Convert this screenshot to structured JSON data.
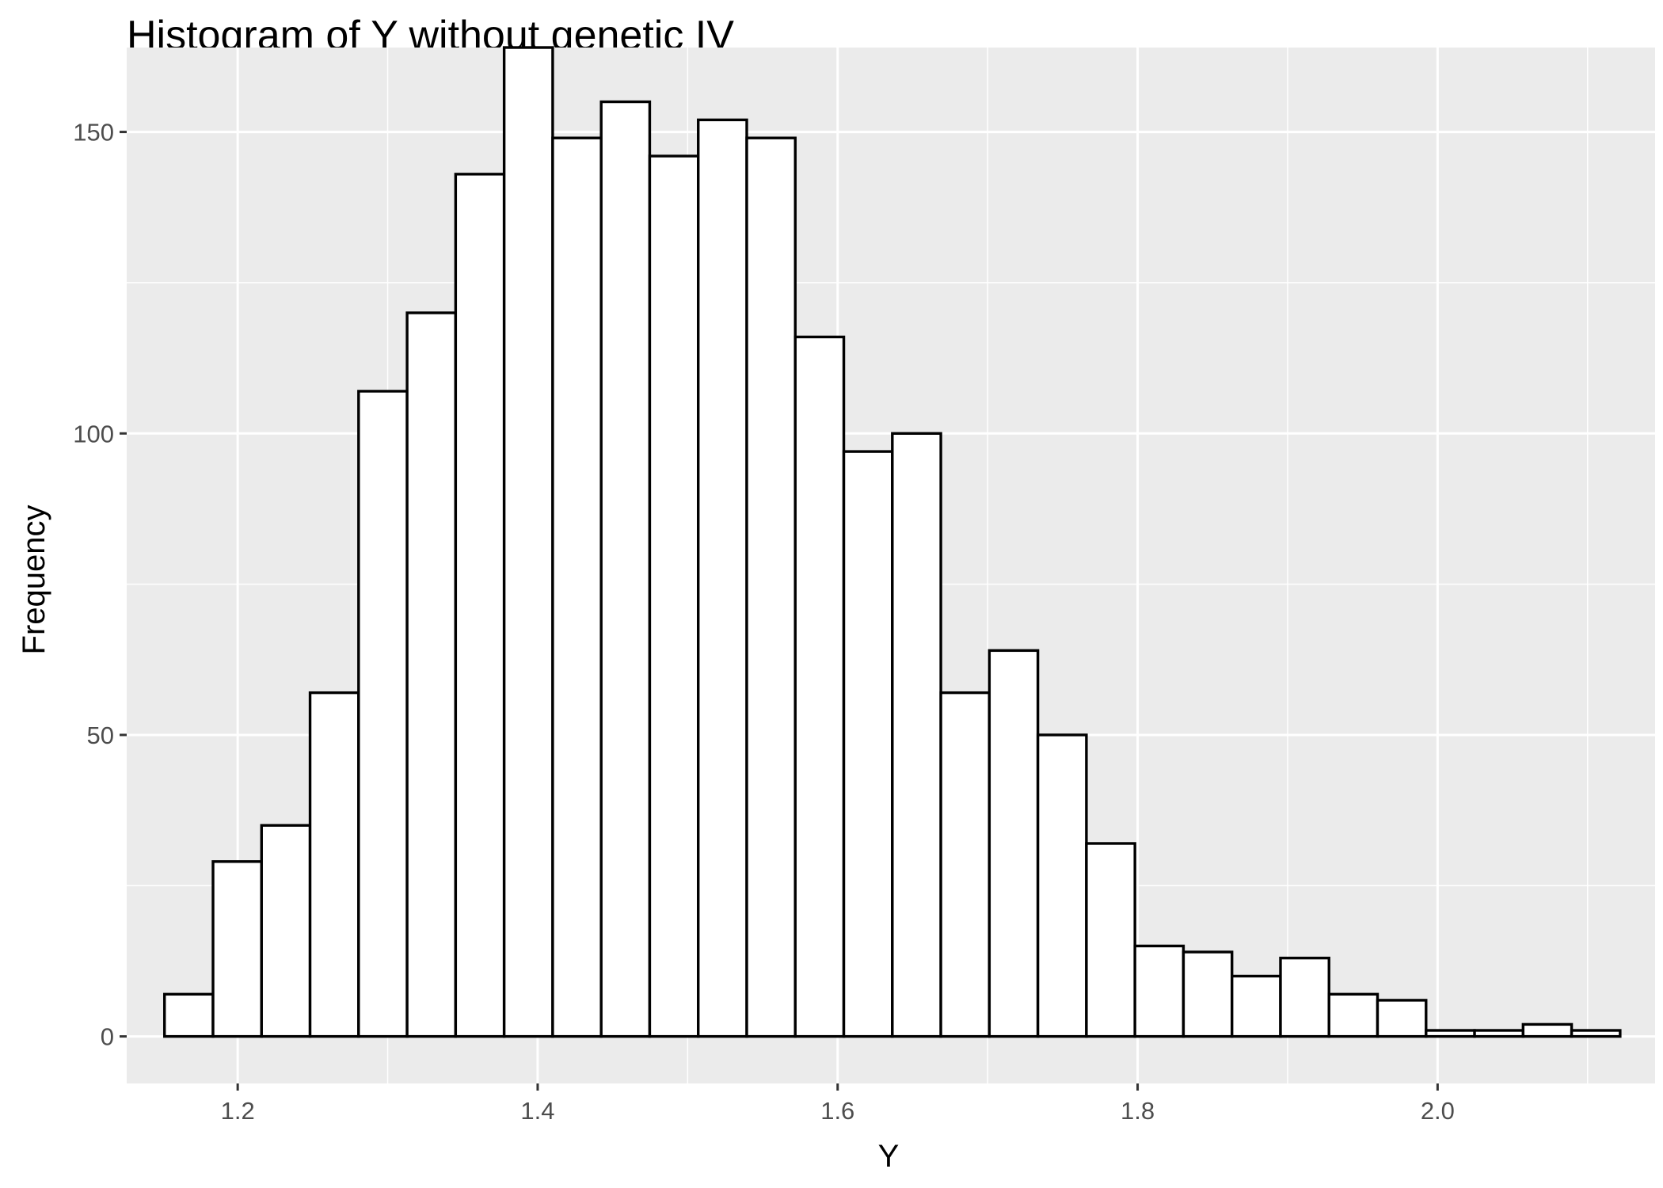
{
  "chart_data": {
    "type": "bar",
    "title": "Histogram of Y without genetic IV",
    "xlabel": "Y",
    "ylabel": "Frequency",
    "xlim": [
      1.126,
      2.145
    ],
    "ylim": [
      -7.8,
      164
    ],
    "x_ticks": [
      1.2,
      1.4,
      1.6,
      1.8,
      2.0
    ],
    "x_tick_labels": [
      "1.2",
      "1.4",
      "1.6",
      "1.8",
      "2.0"
    ],
    "y_ticks": [
      0,
      50,
      100,
      150
    ],
    "y_tick_labels": [
      "0",
      "50",
      "100",
      "150"
    ],
    "bin_width": 0.03235,
    "bin_start": 1.1512,
    "counts": [
      7,
      29,
      35,
      57,
      107,
      120,
      143,
      164,
      149,
      155,
      146,
      152,
      149,
      116,
      97,
      100,
      57,
      64,
      50,
      32,
      15,
      14,
      10,
      13,
      7,
      6,
      1,
      1,
      2,
      1
    ],
    "grid": true,
    "legend": "none",
    "colors": {
      "panel_background": "#ebebeb",
      "grid_line": "#ffffff",
      "bar_fill": "#ffffff",
      "bar_stroke": "#000000",
      "tick_mark": "#333333"
    }
  }
}
